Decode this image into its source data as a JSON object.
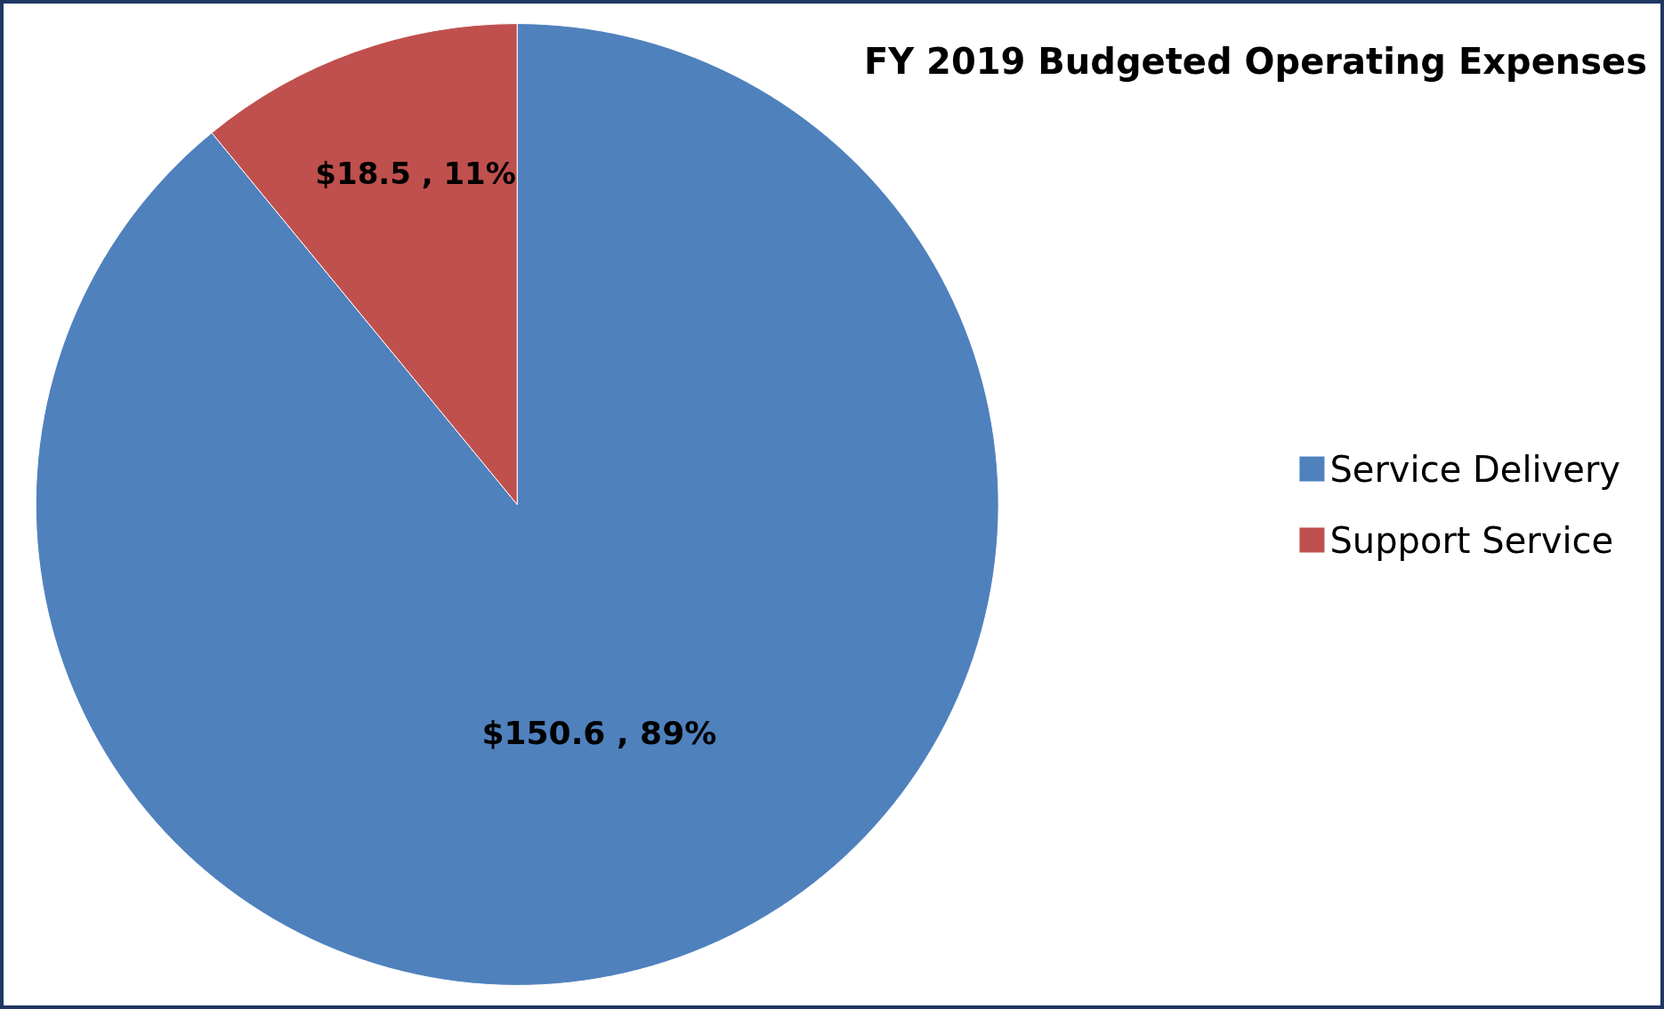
{
  "chart_data": {
    "type": "pie",
    "title": "FY 2019 Budgeted Operating Expenses",
    "categories": [
      "Service Delivery",
      "Support Service"
    ],
    "values": [
      150.6,
      18.5
    ],
    "colors": [
      "#4f81bd",
      "#c0504d"
    ],
    "value_labels": [
      "$150.6 , 89%",
      "$18.5 , 11%"
    ],
    "legend": "right"
  }
}
